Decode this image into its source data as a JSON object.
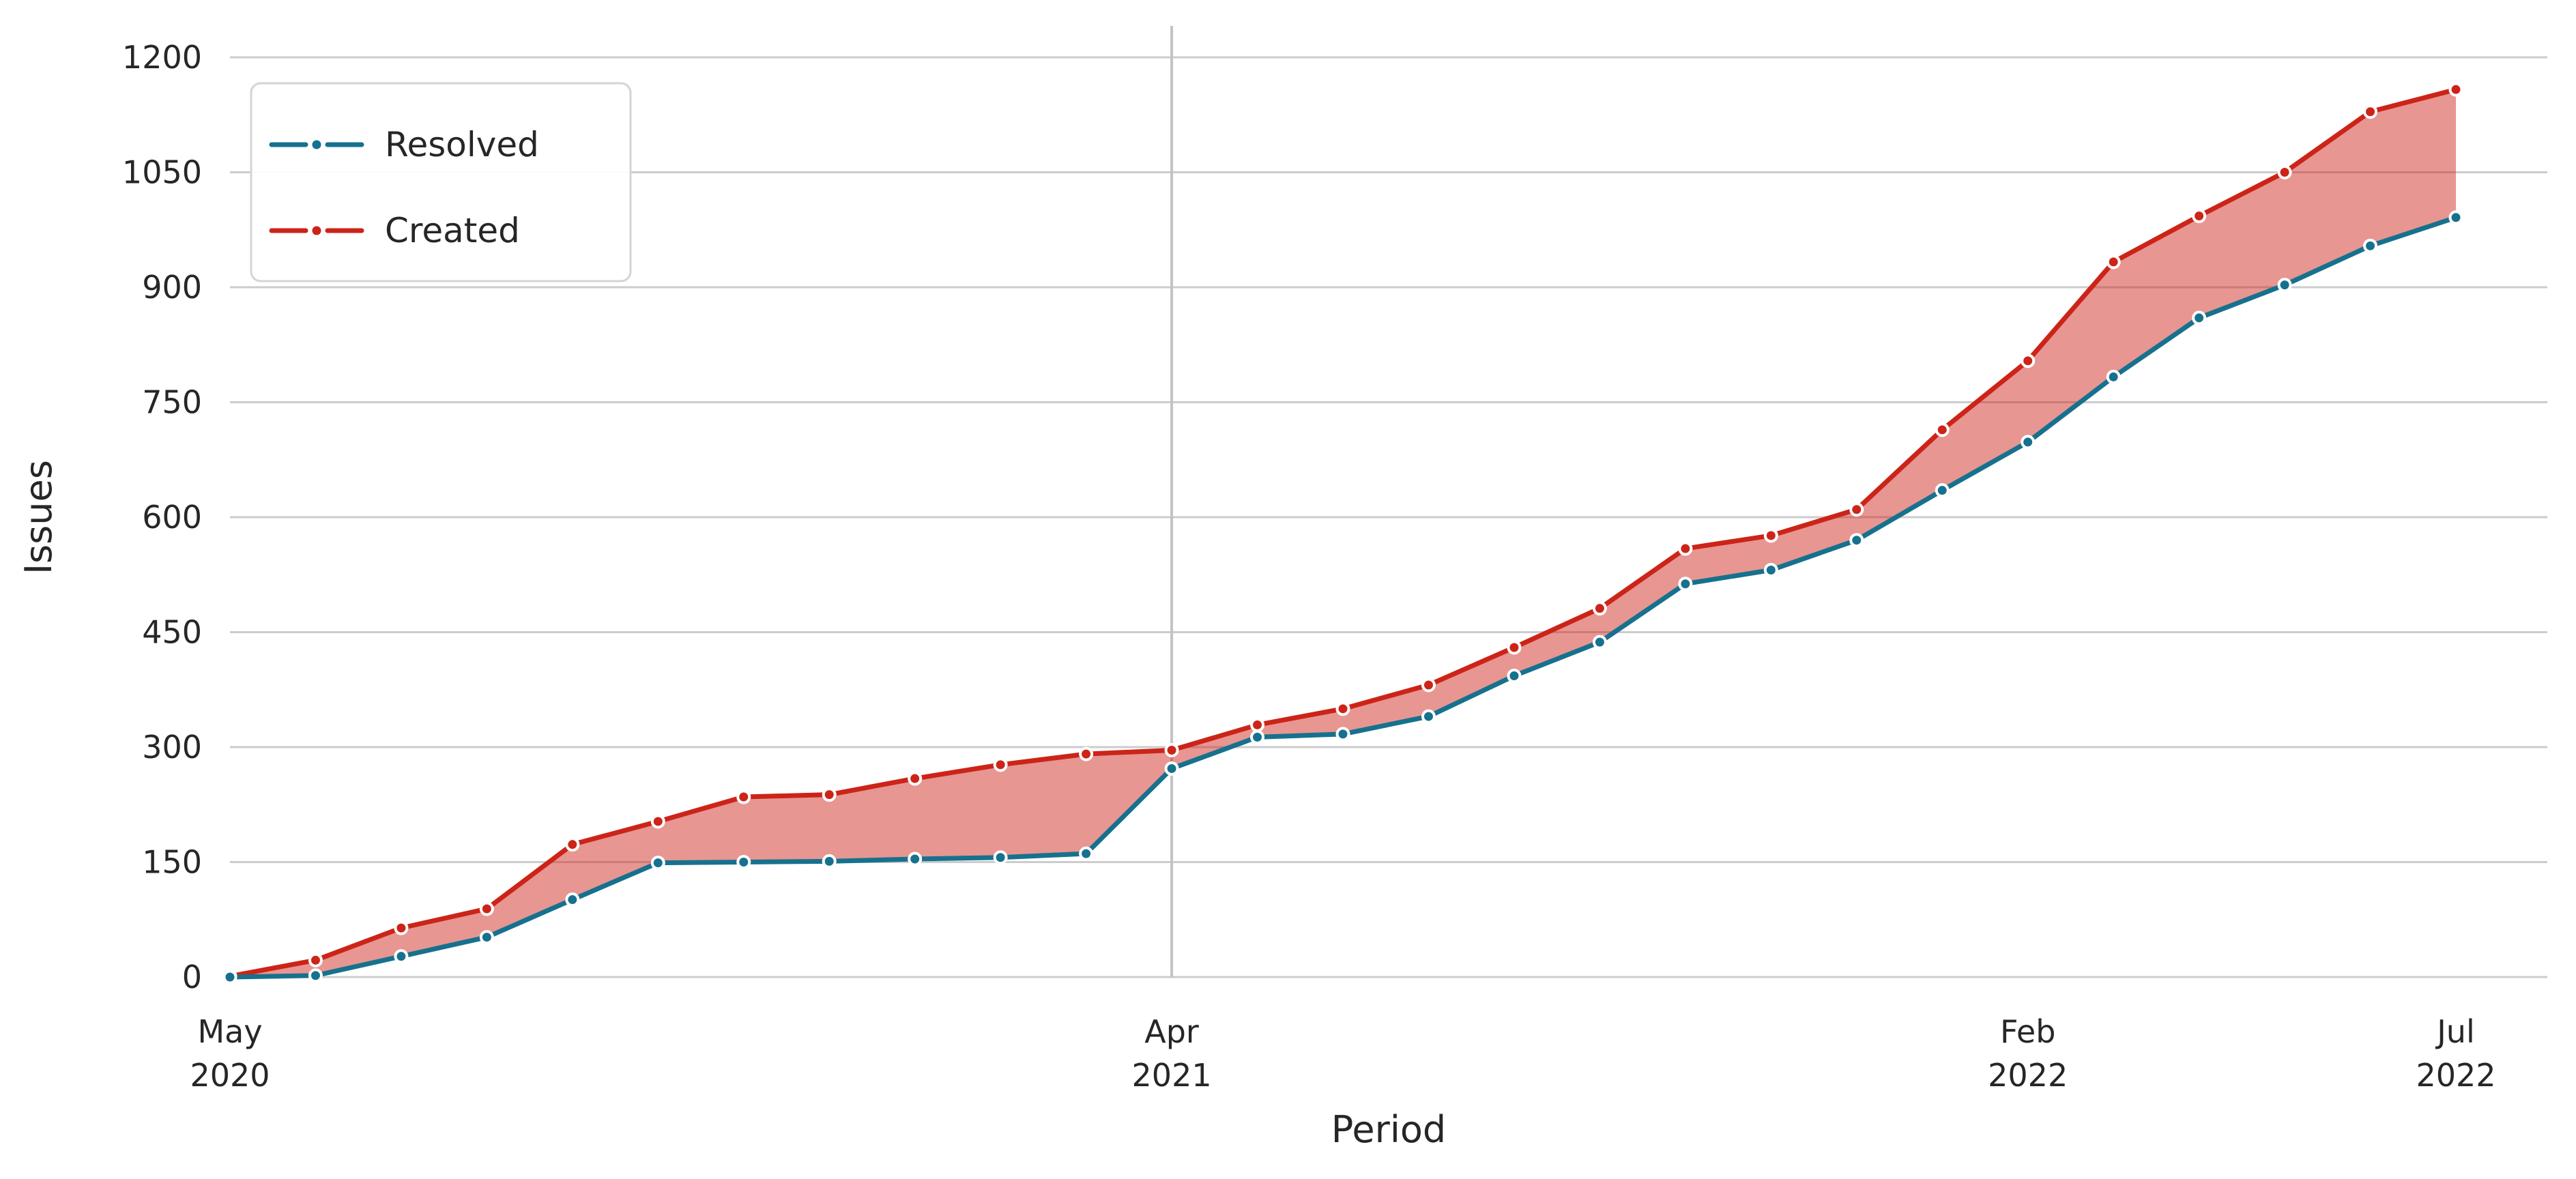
{
  "chart_data": {
    "type": "area",
    "title": "",
    "xlabel": "Period",
    "ylabel": "Issues",
    "categories": [
      "May 2020",
      "Jun 2020",
      "Jul 2020",
      "Aug 2020",
      "Sep 2020",
      "Oct 2020",
      "Nov 2020",
      "Dec 2020",
      "Jan 2021",
      "Feb 2021",
      "Mar 2021",
      "Apr 2021",
      "May 2021",
      "Jun 2021",
      "Jul 2021",
      "Aug 2021",
      "Sep 2021",
      "Oct 2021",
      "Nov 2021",
      "Dec 2021",
      "Jan 2022",
      "Feb 2022",
      "Mar 2022",
      "Apr 2022",
      "May 2022",
      "Jun 2022",
      "Jul 2022"
    ],
    "series": [
      {
        "name": "Resolved",
        "color": "#16718e",
        "values": [
          0,
          2,
          27,
          52,
          101,
          149,
          150,
          151,
          154,
          156,
          161,
          272,
          313,
          317,
          340,
          393,
          437,
          513,
          531,
          570,
          635,
          698,
          783,
          860,
          903,
          954,
          991
        ]
      },
      {
        "name": "Created",
        "color": "#cc2418",
        "values": [
          1,
          22,
          64,
          89,
          173,
          203,
          235,
          238,
          259,
          277,
          291,
          296,
          329,
          350,
          381,
          430,
          481,
          559,
          576,
          610,
          714,
          804,
          933,
          993,
          1050,
          1129,
          1158
        ]
      }
    ],
    "fill_between": {
      "upper": "Created",
      "lower": "Resolved",
      "color": "rgba(205,35,28,0.48)"
    },
    "ylim": [
      0,
      1200
    ],
    "yticks": [
      0,
      150,
      300,
      450,
      600,
      750,
      900,
      1050,
      1200
    ],
    "xticks": [
      {
        "index": 0,
        "line1": "May",
        "line2": "2020"
      },
      {
        "index": 11,
        "line1": "Apr",
        "line2": "2021"
      },
      {
        "index": 21,
        "line1": "Feb",
        "line2": "2022"
      },
      {
        "index": 26,
        "line1": "Jul",
        "line2": "2022"
      }
    ],
    "vline_index": 11,
    "grid": "horizontal",
    "legend_position": "upper-left",
    "colors": {
      "grid": "#cccccc",
      "vline": "#c3c3c3",
      "text": "#262626",
      "legend_border": "#d4d4d4"
    }
  }
}
